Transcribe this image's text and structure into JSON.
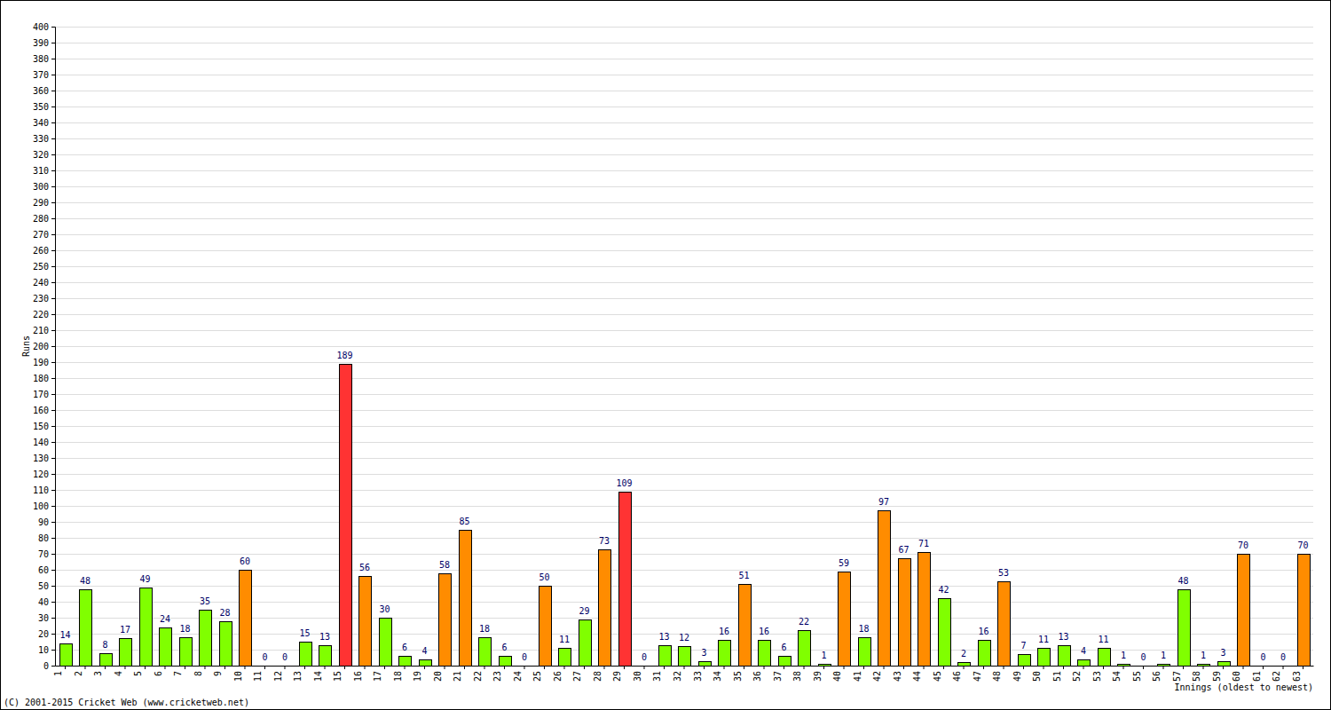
{
  "chart_data": {
    "type": "bar",
    "categories": [
      "1",
      "2",
      "3",
      "4",
      "5",
      "6",
      "7",
      "8",
      "9",
      "10",
      "11",
      "12",
      "13",
      "14",
      "15",
      "16",
      "17",
      "18",
      "19",
      "20",
      "21",
      "22",
      "23",
      "24",
      "25",
      "26",
      "27",
      "28",
      "29",
      "30",
      "31",
      "32",
      "33",
      "34",
      "35",
      "36",
      "37",
      "38",
      "39",
      "40",
      "41",
      "42",
      "43",
      "44",
      "45",
      "46",
      "47",
      "48",
      "49",
      "50",
      "51",
      "52",
      "53",
      "54",
      "55",
      "56",
      "57",
      "58",
      "59",
      "60",
      "61",
      "62",
      "63"
    ],
    "values": [
      14,
      48,
      8,
      17,
      49,
      24,
      18,
      35,
      28,
      60,
      0,
      0,
      15,
      13,
      189,
      56,
      30,
      6,
      4,
      58,
      85,
      18,
      6,
      0,
      50,
      11,
      29,
      73,
      109,
      0,
      13,
      12,
      3,
      16,
      51,
      16,
      6,
      22,
      1,
      59,
      18,
      97,
      67,
      71,
      42,
      2,
      16,
      53,
      7,
      11,
      13,
      4,
      11,
      1,
      0,
      1,
      48,
      1,
      3,
      70,
      0,
      0,
      70
    ],
    "colors": [
      "#80ff00",
      "#80ff00",
      "#80ff00",
      "#80ff00",
      "#80ff00",
      "#80ff00",
      "#80ff00",
      "#80ff00",
      "#80ff00",
      "#ff8c00",
      "#80ff00",
      "#80ff00",
      "#80ff00",
      "#80ff00",
      "#ff3333",
      "#ff8c00",
      "#80ff00",
      "#80ff00",
      "#80ff00",
      "#ff8c00",
      "#ff8c00",
      "#80ff00",
      "#80ff00",
      "#80ff00",
      "#ff8c00",
      "#80ff00",
      "#80ff00",
      "#ff8c00",
      "#ff3333",
      "#80ff00",
      "#80ff00",
      "#80ff00",
      "#80ff00",
      "#80ff00",
      "#ff8c00",
      "#80ff00",
      "#80ff00",
      "#80ff00",
      "#80ff00",
      "#ff8c00",
      "#80ff00",
      "#ff8c00",
      "#ff8c00",
      "#ff8c00",
      "#80ff00",
      "#80ff00",
      "#80ff00",
      "#ff8c00",
      "#80ff00",
      "#80ff00",
      "#80ff00",
      "#80ff00",
      "#80ff00",
      "#80ff00",
      "#80ff00",
      "#80ff00",
      "#80ff00",
      "#80ff00",
      "#80ff00",
      "#ff8c00",
      "#80ff00",
      "#80ff00",
      "#ff8c00"
    ],
    "x_label": "Innings (oldest to newest)",
    "y_label": "Runs",
    "annotations": [
      "(C) 2001-2015 Cricket Web (www.cricketweb.net)"
    ],
    "ylim": [
      0,
      400
    ],
    "yticks": [
      0,
      10,
      20,
      30,
      40,
      50,
      60,
      70,
      80,
      90,
      100,
      110,
      120,
      130,
      140,
      150,
      160,
      170,
      180,
      190,
      200,
      210,
      220,
      230,
      240,
      250,
      260,
      270,
      280,
      290,
      300,
      310,
      320,
      330,
      340,
      350,
      360,
      370,
      380,
      390,
      400
    ],
    "grid": true,
    "data_labels": true
  }
}
